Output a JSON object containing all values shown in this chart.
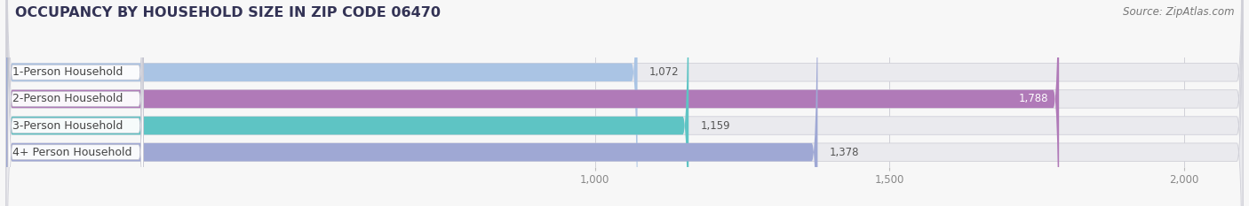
{
  "title": "OCCUPANCY BY HOUSEHOLD SIZE IN ZIP CODE 06470",
  "source": "Source: ZipAtlas.com",
  "categories": [
    "1-Person Household",
    "2-Person Household",
    "3-Person Household",
    "4+ Person Household"
  ],
  "values": [
    1072,
    1788,
    1159,
    1378
  ],
  "bar_colors": [
    "#aac4e4",
    "#b07ab8",
    "#5ec4c4",
    "#9fa8d4"
  ],
  "bar_bg_color": "#eaeaee",
  "bg_color": "#f7f7f7",
  "xlim": [
    0,
    2100
  ],
  "xticks": [
    1000,
    1500,
    2000
  ],
  "xtick_labels": [
    "1,000",
    "1,500",
    "2,000"
  ],
  "title_fontsize": 11.5,
  "label_fontsize": 9,
  "value_fontsize": 8.5,
  "source_fontsize": 8.5,
  "title_color": "#333355",
  "source_color": "#777777",
  "label_color": "#444444",
  "value_color_dark": "#555555",
  "value_color_light": "#ffffff"
}
